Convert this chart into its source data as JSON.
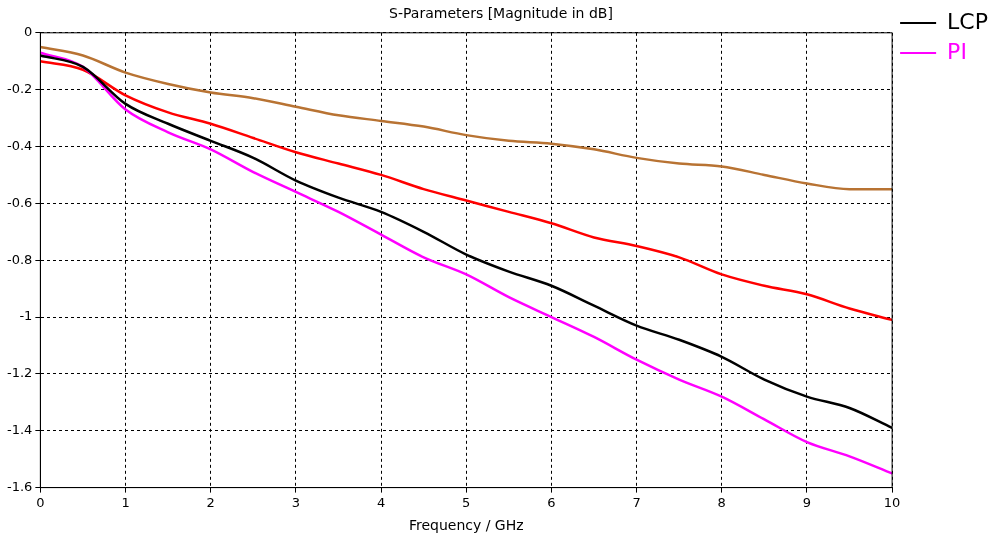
{
  "chart_data": {
    "type": "line",
    "title": "S-Parameters [Magnitude in dB]",
    "xlabel": "Frequency / GHz",
    "x": [
      0,
      0.5,
      1,
      1.5,
      2,
      2.5,
      3,
      3.5,
      4,
      4.5,
      5,
      5.5,
      6,
      6.5,
      7,
      7.5,
      8,
      8.5,
      9,
      9.5,
      10
    ],
    "series": [
      {
        "name": "LCP",
        "color": "#000000",
        "values": [
          -0.08,
          -0.12,
          -0.25,
          -0.32,
          -0.38,
          -0.44,
          -0.52,
          -0.58,
          -0.63,
          -0.7,
          -0.78,
          -0.84,
          -0.89,
          -0.96,
          -1.03,
          -1.08,
          -1.14,
          -1.22,
          -1.28,
          -1.32,
          -1.39
        ]
      },
      {
        "name": "PI",
        "color": "#ff00ff",
        "values": [
          -0.07,
          -0.12,
          -0.27,
          -0.35,
          -0.41,
          -0.49,
          -0.56,
          -0.63,
          -0.71,
          -0.79,
          -0.85,
          -0.93,
          -1.0,
          -1.07,
          -1.15,
          -1.22,
          -1.28,
          -1.36,
          -1.44,
          -1.49,
          -1.55
        ]
      },
      {
        "color": "#ff0000",
        "values": [
          -0.1,
          -0.13,
          -0.22,
          -0.28,
          -0.32,
          -0.37,
          -0.42,
          -0.46,
          -0.5,
          -0.55,
          -0.59,
          -0.63,
          -0.67,
          -0.72,
          -0.75,
          -0.79,
          -0.85,
          -0.89,
          -0.92,
          -0.97,
          -1.01
        ]
      },
      {
        "color": "#b87333",
        "values": [
          -0.05,
          -0.08,
          -0.14,
          -0.18,
          -0.21,
          -0.23,
          -0.26,
          -0.29,
          -0.31,
          -0.33,
          -0.36,
          -0.38,
          -0.39,
          -0.41,
          -0.44,
          -0.46,
          -0.47,
          -0.5,
          -0.53,
          -0.55,
          -0.55
        ]
      }
    ],
    "xlim": [
      0,
      10
    ],
    "xticks": [
      0,
      1,
      2,
      3,
      4,
      5,
      6,
      7,
      8,
      9,
      10
    ],
    "ylim": [
      -1.6,
      0
    ],
    "yticks": [
      -1.6,
      -1.4,
      -1.2,
      -1,
      -0.8,
      -0.6,
      -0.4,
      -0.2,
      0
    ],
    "grid": true,
    "legend": "top right",
    "marker": "none",
    "line_style": "solid"
  }
}
